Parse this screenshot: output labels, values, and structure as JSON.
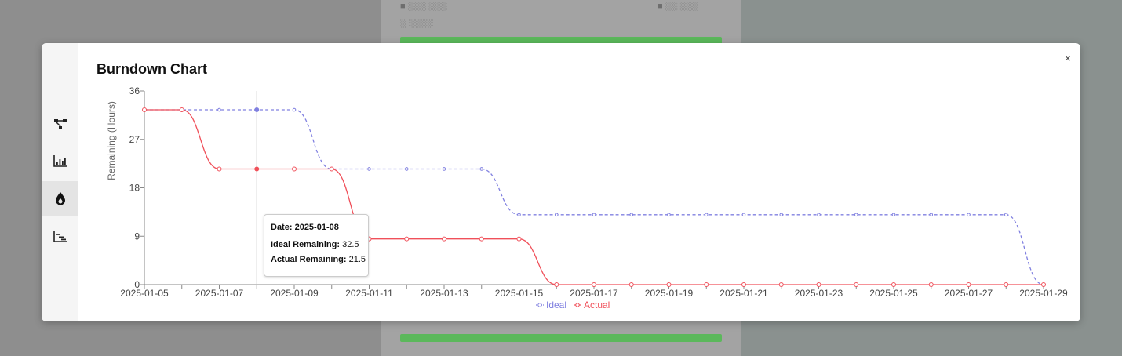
{
  "background": {
    "card_text_left": "■ ░░░ ░░░",
    "card_text_right": "■ ░░ ░░░",
    "card_subtext": "░ ░░░░",
    "bar_color": "#5bb85b"
  },
  "modal": {
    "title": "Burndown Chart",
    "close_label": "×",
    "sidebar": [
      {
        "icon": "network-icon",
        "active": false
      },
      {
        "icon": "bar-chart-icon",
        "active": false
      },
      {
        "icon": "burndown-drop-icon",
        "active": true
      },
      {
        "icon": "gantt-icon",
        "active": false
      }
    ]
  },
  "tooltip": {
    "date_label": "Date:",
    "date_value": "2025-01-08",
    "ideal_label": "Ideal Remaining:",
    "ideal_value": "32.5",
    "actual_label": "Actual Remaining:",
    "actual_value": "21.5"
  },
  "chart_data": {
    "type": "line",
    "title": "Burndown Chart",
    "xlabel": "",
    "ylabel": "Remaining (Hours)",
    "ylim": [
      0,
      36
    ],
    "yticks": [
      0,
      9,
      18,
      27,
      36
    ],
    "xtick_labels": [
      "2025-01-05",
      "2025-01-07",
      "2025-01-09",
      "2025-01-11",
      "2025-01-13",
      "2025-01-15",
      "2025-01-17",
      "2025-01-19",
      "2025-01-21",
      "2025-01-23",
      "2025-01-25",
      "2025-01-27",
      "2025-01-29"
    ],
    "x": [
      "2025-01-05",
      "2025-01-06",
      "2025-01-07",
      "2025-01-08",
      "2025-01-09",
      "2025-01-10",
      "2025-01-11",
      "2025-01-12",
      "2025-01-13",
      "2025-01-14",
      "2025-01-15",
      "2025-01-16",
      "2025-01-17",
      "2025-01-18",
      "2025-01-19",
      "2025-01-20",
      "2025-01-21",
      "2025-01-22",
      "2025-01-23",
      "2025-01-24",
      "2025-01-25",
      "2025-01-26",
      "2025-01-27",
      "2025-01-28",
      "2025-01-29"
    ],
    "series": [
      {
        "name": "Ideal",
        "color": "#8080e0",
        "dashed": true,
        "values": [
          32.5,
          32.5,
          32.5,
          32.5,
          32.5,
          21.5,
          21.5,
          21.5,
          21.5,
          21.5,
          13,
          13,
          13,
          13,
          13,
          13,
          13,
          13,
          13,
          13,
          13,
          13,
          13,
          13,
          0
        ]
      },
      {
        "name": "Actual",
        "color": "#f0505a",
        "dashed": false,
        "values": [
          32.5,
          32.5,
          21.5,
          21.5,
          21.5,
          21.5,
          8.5,
          8.5,
          8.5,
          8.5,
          8.5,
          0,
          0,
          0,
          0,
          0,
          0,
          0,
          0,
          0,
          0,
          0,
          0,
          0,
          0
        ]
      }
    ],
    "hover_index": 3,
    "legend": "bottom-center",
    "grid": false
  }
}
